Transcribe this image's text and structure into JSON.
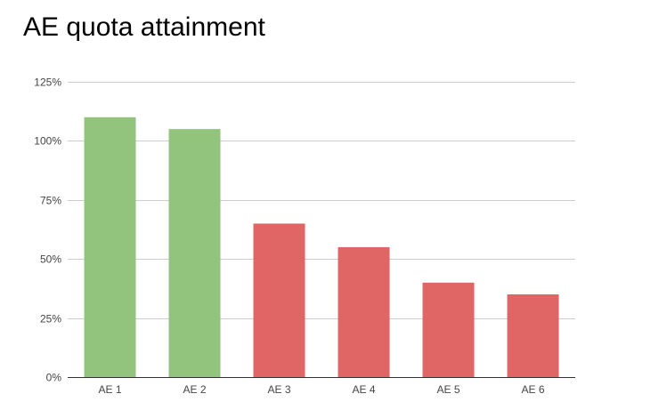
{
  "chart_data": {
    "type": "bar",
    "title": "AE quota attainment",
    "categories": [
      "AE 1",
      "AE 2",
      "AE 3",
      "AE 4",
      "AE 5",
      "AE 6"
    ],
    "values": [
      110,
      105,
      65,
      55,
      40,
      35
    ],
    "bar_colors": [
      "#93c47d",
      "#93c47d",
      "#e06666",
      "#e06666",
      "#e06666",
      "#e06666"
    ],
    "ylim": [
      0,
      125
    ],
    "yticks": [
      0,
      25,
      50,
      75,
      100,
      125
    ],
    "ytick_labels": [
      "0%",
      "25%",
      "50%",
      "75%",
      "100%",
      "125%"
    ],
    "grid": true,
    "legend": "none",
    "xlabel": "",
    "ylabel": ""
  }
}
